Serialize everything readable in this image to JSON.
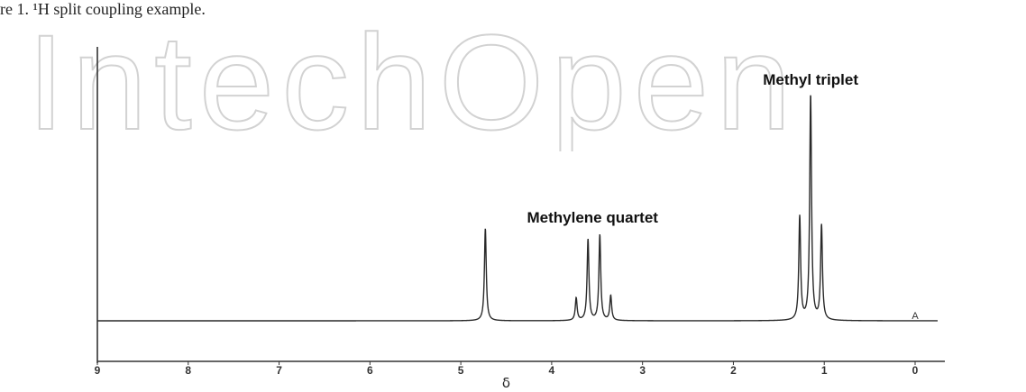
{
  "caption": "re 1. ¹H split coupling example.",
  "watermark": "IntechOpen",
  "chart_data": {
    "type": "line",
    "title": "",
    "xlabel": "δ",
    "ylabel": "",
    "xlim": [
      9,
      0
    ],
    "x_ticks": [
      "9",
      "8",
      "7",
      "6",
      "5",
      "4",
      "3",
      "2",
      "1",
      "0"
    ],
    "x_reversed": true,
    "annotations": [
      {
        "text": "Methylene quartet",
        "x": 3.55
      },
      {
        "text": "Methyl triplet",
        "x": 1.15
      },
      {
        "text": "A",
        "x": 0.0
      }
    ],
    "peaks": [
      {
        "group": "singlet",
        "x": 4.73,
        "height": 0.41
      },
      {
        "group": "Methylene quartet",
        "x": 3.73,
        "height": 0.1
      },
      {
        "group": "Methylene quartet",
        "x": 3.6,
        "height": 0.36
      },
      {
        "group": "Methylene quartet",
        "x": 3.47,
        "height": 0.38
      },
      {
        "group": "Methylene quartet",
        "x": 3.35,
        "height": 0.11
      },
      {
        "group": "Methyl triplet",
        "x": 1.27,
        "height": 0.46
      },
      {
        "group": "Methyl triplet",
        "x": 1.15,
        "height": 1.0
      },
      {
        "group": "Methyl triplet",
        "x": 1.03,
        "height": 0.42
      }
    ]
  }
}
